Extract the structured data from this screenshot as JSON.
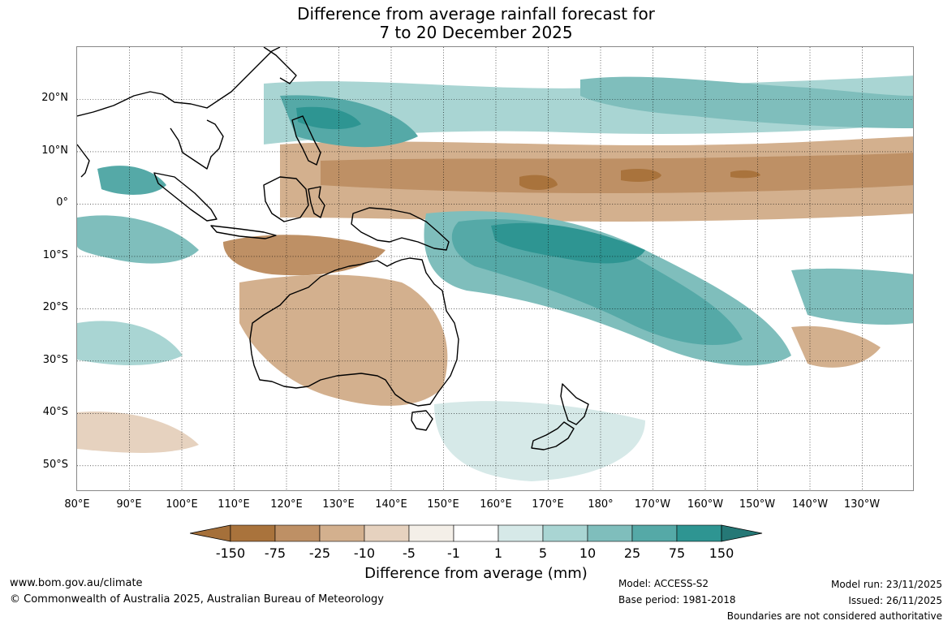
{
  "title_line1": "Difference from average rainfall forecast for",
  "title_line2": "7 to 20 December 2025",
  "map": {
    "lon_range": [
      "80°E",
      "125°W"
    ],
    "lat_range": [
      "55°S",
      "30°N"
    ],
    "grid": "dotted",
    "lat_labels": [
      "20°N",
      "10°N",
      "0°",
      "10°S",
      "20°S",
      "30°S",
      "40°S",
      "50°S"
    ],
    "lon_labels": [
      "80°E",
      "90°E",
      "100°E",
      "110°E",
      "120°E",
      "130°E",
      "140°E",
      "150°E",
      "160°E",
      "170°E",
      "180°",
      "170°W",
      "160°W",
      "150°W",
      "140°W",
      "130°W"
    ],
    "palette": {
      "below_150": "#a5703a",
      "m150_m75": "#a9733c",
      "m75_m25": "#be9065",
      "m25_m10": "#d3b08e",
      "m10_m5": "#e6d2bf",
      "m5_m1": "#f4efe8",
      "m1_1": "#ffffff",
      "p1_5": "#d6e9e8",
      "p5_10": "#a9d5d3",
      "p10_25": "#7fbebc",
      "p25_75": "#55a9a7",
      "p75_150": "#2e9592",
      "above_150": "#257876"
    }
  },
  "legend": {
    "ticks": [
      "-150",
      "-75",
      "-25",
      "-10",
      "-5",
      "-1",
      "1",
      "5",
      "10",
      "25",
      "75",
      "150"
    ],
    "label": "Difference from average (mm)"
  },
  "footer": {
    "website": "www.bom.gov.au/climate",
    "copyright": "© Commonwealth of Australia 2025, Australian Bureau of Meteorology",
    "model": "Model: ACCESS-S2",
    "base_period": "Base period: 1981-2018",
    "model_run": "Model run: 23/11/2025",
    "issued": "Issued: 26/11/2025",
    "disclaimer": "Boundaries are not considered authoritative"
  }
}
